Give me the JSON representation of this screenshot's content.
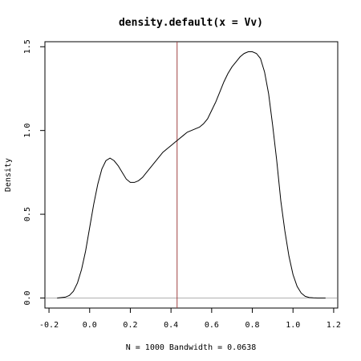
{
  "chart_data": {
    "type": "line",
    "title": "density.default(x = Vv)",
    "xlabel": "N = 1000   Bandwidth = 0.0638",
    "ylabel": "Density",
    "xlim": [
      -0.22,
      1.22
    ],
    "ylim": [
      -0.06,
      1.53
    ],
    "grid": false,
    "x_ticks": [
      -0.2,
      0.0,
      0.2,
      0.4,
      0.6,
      0.8,
      1.0,
      1.2
    ],
    "x_tick_labels": [
      "-0.2",
      "0.0",
      "0.2",
      "0.4",
      "0.6",
      "0.8",
      "1.0",
      "1.2"
    ],
    "y_ticks": [
      0.0,
      0.5,
      1.0,
      1.5
    ],
    "y_tick_labels": [
      "0.0",
      "0.5",
      "1.0",
      "1.5"
    ],
    "series": [
      {
        "color": "#000000",
        "x": [
          -0.16,
          -0.12,
          -0.1,
          -0.08,
          -0.06,
          -0.04,
          -0.02,
          0.0,
          0.02,
          0.04,
          0.06,
          0.08,
          0.1,
          0.12,
          0.14,
          0.16,
          0.18,
          0.2,
          0.22,
          0.24,
          0.26,
          0.28,
          0.3,
          0.32,
          0.34,
          0.36,
          0.38,
          0.4,
          0.42,
          0.44,
          0.46,
          0.48,
          0.5,
          0.52,
          0.54,
          0.56,
          0.58,
          0.6,
          0.62,
          0.64,
          0.66,
          0.68,
          0.7,
          0.72,
          0.74,
          0.76,
          0.78,
          0.8,
          0.82,
          0.84,
          0.86,
          0.88,
          0.9,
          0.92,
          0.94,
          0.96,
          0.98,
          1.0,
          1.02,
          1.04,
          1.06,
          1.08,
          1.1,
          1.12,
          1.16
        ],
        "y": [
          0.0,
          0.005,
          0.015,
          0.04,
          0.09,
          0.17,
          0.28,
          0.42,
          0.56,
          0.68,
          0.77,
          0.82,
          0.835,
          0.82,
          0.79,
          0.75,
          0.71,
          0.69,
          0.69,
          0.7,
          0.72,
          0.75,
          0.78,
          0.81,
          0.84,
          0.87,
          0.89,
          0.91,
          0.93,
          0.95,
          0.97,
          0.99,
          1.0,
          1.01,
          1.02,
          1.04,
          1.07,
          1.12,
          1.17,
          1.23,
          1.29,
          1.34,
          1.38,
          1.41,
          1.44,
          1.46,
          1.47,
          1.47,
          1.46,
          1.43,
          1.35,
          1.22,
          1.03,
          0.82,
          0.58,
          0.4,
          0.25,
          0.14,
          0.07,
          0.03,
          0.01,
          0.003,
          0.001,
          0.0,
          0.0
        ]
      }
    ],
    "baseline": {
      "y": 0,
      "color": "#b0b0b0"
    },
    "vline": {
      "x": 0.43,
      "color": "#a04040"
    }
  }
}
